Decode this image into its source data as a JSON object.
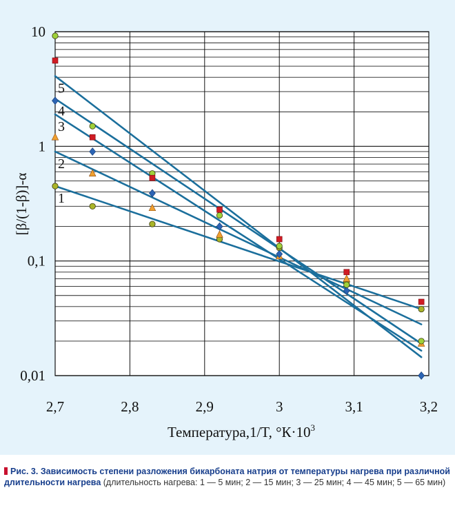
{
  "chart_data": {
    "type": "scatter",
    "title": "",
    "xlabel": "Температура,1/T, °К·10",
    "xlabel_sup": "3",
    "ylabel": "[β/(1-β)]-α",
    "y_scale": "log",
    "xlim": [
      2.7,
      3.2
    ],
    "ylim": [
      0.01,
      10
    ],
    "x_ticks": [
      "2,7",
      "2,8",
      "2,9",
      "3",
      "3,1",
      "3,2"
    ],
    "x_tick_values": [
      2.7,
      2.8,
      2.9,
      3.0,
      3.1,
      3.2
    ],
    "y_ticks": [
      "10",
      "1",
      "0,1",
      "0,01"
    ],
    "y_tick_values": [
      10,
      1,
      0.1,
      0.01
    ],
    "grid": true,
    "x": [
      2.7,
      2.75,
      2.83,
      2.92,
      3.0,
      3.09,
      3.19
    ],
    "series": [
      {
        "name": "1",
        "marker": "circle",
        "color": "#aab52a",
        "values": [
          0.45,
          0.3,
          0.21,
          0.155,
          0.13,
          0.065,
          0.038
        ],
        "fit": [
          [
            2.7,
            0.45
          ],
          [
            3.19,
            0.038
          ]
        ]
      },
      {
        "name": "2",
        "marker": "triangle",
        "color": "#f0a030",
        "values": [
          1.2,
          0.58,
          0.29,
          0.17,
          0.11,
          0.07,
          0.019
        ],
        "fit": [
          [
            2.7,
            0.9
          ],
          [
            3.19,
            0.028
          ]
        ]
      },
      {
        "name": "3",
        "marker": "diamond",
        "color": "#2c64b4",
        "values": [
          2.5,
          0.9,
          0.39,
          0.2,
          0.115,
          0.055,
          0.01
        ],
        "fit": [
          [
            2.7,
            1.9
          ],
          [
            3.19,
            0.0165
          ]
        ]
      },
      {
        "name": "4",
        "marker": "circle",
        "color": "#9fd13a",
        "values": [
          9.2,
          1.5,
          0.58,
          0.25,
          0.135,
          0.062,
          0.02
        ],
        "fit": [
          [
            2.7,
            2.6
          ],
          [
            3.19,
            0.019
          ]
        ]
      },
      {
        "name": "5",
        "marker": "square",
        "color": "#d01c24",
        "values": [
          5.6,
          1.2,
          0.53,
          0.28,
          0.155,
          0.08,
          0.044
        ],
        "fit": [
          [
            2.7,
            4.1
          ],
          [
            3.19,
            0.0145
          ]
        ]
      }
    ],
    "fit_color": "#1b6f9c",
    "background": "#e5f3fb"
  },
  "caption": {
    "bold": "Рис. 3. Зависимость степени разложения бикарбоната натрия от температуры нагрева при различной длительности нагрева",
    "rest": " (длительность нагрева: 1 — 5 мин; 2 — 15 мин; 3 — 25 мин; 4 — 45 мин; 5 — 65 мин)"
  }
}
